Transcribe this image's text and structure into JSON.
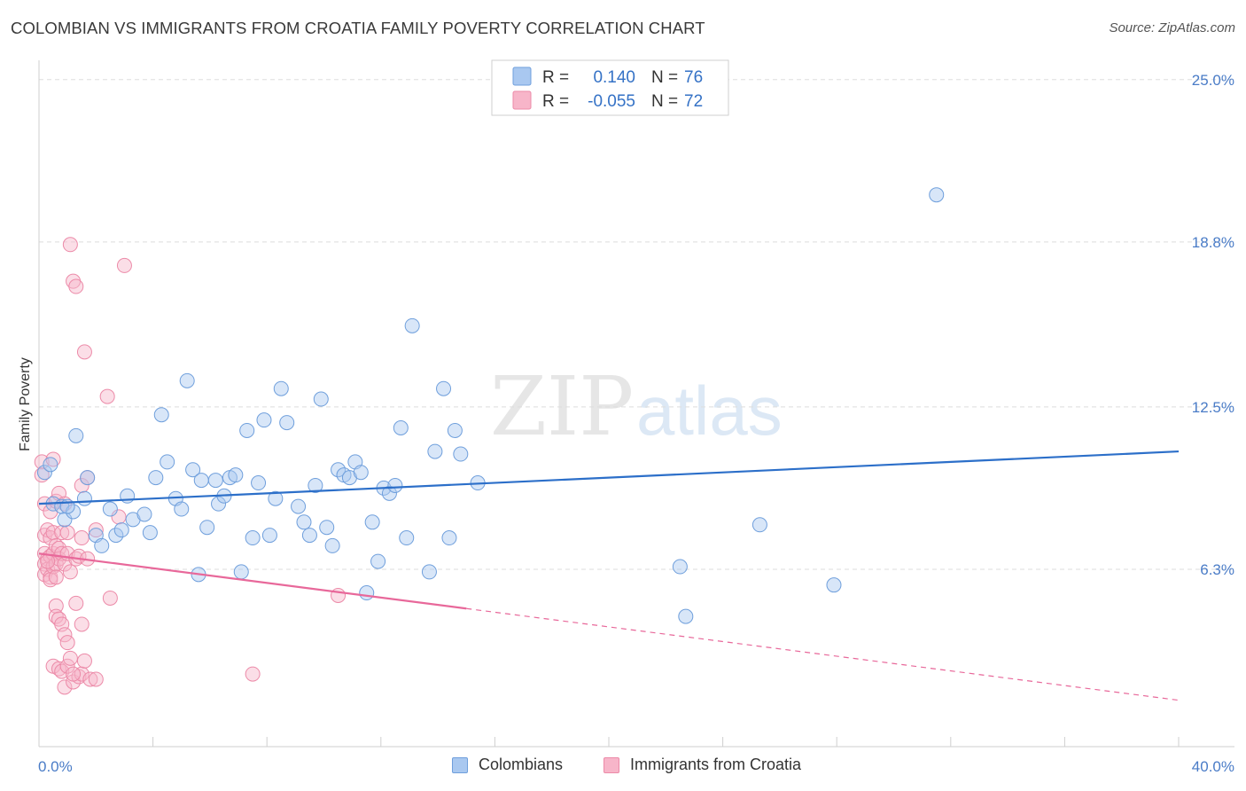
{
  "title": "COLOMBIAN VS IMMIGRANTS FROM CROATIA FAMILY POVERTY CORRELATION CHART",
  "source": "Source: ZipAtlas.com",
  "watermark": {
    "zip": "ZIP",
    "atlas": "atlas"
  },
  "colors": {
    "blue_fill": "#a9c8f0",
    "blue_stroke": "#6f9fdc",
    "blue_line": "#2c6fc9",
    "pink_fill": "#f7b5c9",
    "pink_stroke": "#ec8aa8",
    "pink_line": "#e8689a",
    "grid": "#dddddd",
    "tick_label": "#4a7cc7"
  },
  "legend": {
    "rows": [
      {
        "r_label": "R =",
        "r_value": "0.140",
        "n_label": "N =",
        "n_value": "76"
      },
      {
        "r_label": "R =",
        "r_value": "-0.055",
        "n_label": "N =",
        "n_value": "72"
      }
    ]
  },
  "bottom_legend": {
    "series1": "Colombians",
    "series2": "Immigrants from Croatia"
  },
  "chart_data": {
    "type": "scatter",
    "title": "COLOMBIAN VS IMMIGRANTS FROM CROATIA FAMILY POVERTY CORRELATION CHART",
    "xlabel": "",
    "ylabel": "Family Poverty",
    "xlim": [
      0,
      40
    ],
    "ylim": [
      0,
      25.5
    ],
    "x_tick_labels": [
      "0.0%",
      "40.0%"
    ],
    "y_ticks": [
      6.3,
      12.5,
      18.8,
      25.0
    ],
    "y_tick_labels": [
      "6.3%",
      "12.5%",
      "18.8%",
      "25.0%"
    ],
    "series": [
      {
        "name": "Colombians",
        "r": 0.14,
        "n": 76,
        "trend": {
          "x0": 0,
          "y0": 8.8,
          "x1": 40,
          "y1": 10.8,
          "dashed_from": null
        },
        "points": [
          [
            0.2,
            10.0
          ],
          [
            0.5,
            8.8
          ],
          [
            0.8,
            8.7
          ],
          [
            0.9,
            8.2
          ],
          [
            1.3,
            11.4
          ],
          [
            1.6,
            9.0
          ],
          [
            1.7,
            9.8
          ],
          [
            1.2,
            8.5
          ],
          [
            2.0,
            7.6
          ],
          [
            2.2,
            7.2
          ],
          [
            2.5,
            8.6
          ],
          [
            2.7,
            7.6
          ],
          [
            2.9,
            7.8
          ],
          [
            3.1,
            9.1
          ],
          [
            3.3,
            8.2
          ],
          [
            3.7,
            8.4
          ],
          [
            3.9,
            7.7
          ],
          [
            4.1,
            9.8
          ],
          [
            4.3,
            12.2
          ],
          [
            4.5,
            10.4
          ],
          [
            4.8,
            9.0
          ],
          [
            5.0,
            8.6
          ],
          [
            5.2,
            13.5
          ],
          [
            5.4,
            10.1
          ],
          [
            5.6,
            6.1
          ],
          [
            5.7,
            9.7
          ],
          [
            5.9,
            7.9
          ],
          [
            6.2,
            9.7
          ],
          [
            6.3,
            8.8
          ],
          [
            6.5,
            9.1
          ],
          [
            6.7,
            9.8
          ],
          [
            6.9,
            9.9
          ],
          [
            7.1,
            6.2
          ],
          [
            7.3,
            11.6
          ],
          [
            7.5,
            7.5
          ],
          [
            7.7,
            9.6
          ],
          [
            7.9,
            12.0
          ],
          [
            8.1,
            7.6
          ],
          [
            8.3,
            9.0
          ],
          [
            8.5,
            13.2
          ],
          [
            8.7,
            11.9
          ],
          [
            9.1,
            8.7
          ],
          [
            9.3,
            8.1
          ],
          [
            9.5,
            7.6
          ],
          [
            9.7,
            9.5
          ],
          [
            9.9,
            12.8
          ],
          [
            10.1,
            7.9
          ],
          [
            10.3,
            7.2
          ],
          [
            10.5,
            10.1
          ],
          [
            10.7,
            9.9
          ],
          [
            10.9,
            9.8
          ],
          [
            11.1,
            10.4
          ],
          [
            11.3,
            10.0
          ],
          [
            11.5,
            5.4
          ],
          [
            11.7,
            8.1
          ],
          [
            11.9,
            6.6
          ],
          [
            12.1,
            9.4
          ],
          [
            12.3,
            9.2
          ],
          [
            12.5,
            9.5
          ],
          [
            12.7,
            11.7
          ],
          [
            12.9,
            7.5
          ],
          [
            13.1,
            15.6
          ],
          [
            13.7,
            6.2
          ],
          [
            13.9,
            10.8
          ],
          [
            14.2,
            13.2
          ],
          [
            14.4,
            7.5
          ],
          [
            14.6,
            11.6
          ],
          [
            14.8,
            10.7
          ],
          [
            15.4,
            9.6
          ],
          [
            22.5,
            6.4
          ],
          [
            22.7,
            4.5
          ],
          [
            25.3,
            8.0
          ],
          [
            27.9,
            5.7
          ],
          [
            31.5,
            20.6
          ],
          [
            0.4,
            10.3
          ],
          [
            1.0,
            8.7
          ]
        ]
      },
      {
        "name": "Immigrants from Croatia",
        "r": -0.055,
        "n": 72,
        "trend": {
          "x0": 0,
          "y0": 6.9,
          "x1": 40,
          "y1": 1.3,
          "dashed_from": 15.0
        },
        "points": [
          [
            0.1,
            10.4
          ],
          [
            0.1,
            9.9
          ],
          [
            0.2,
            8.8
          ],
          [
            0.2,
            7.6
          ],
          [
            0.2,
            6.9
          ],
          [
            0.2,
            6.5
          ],
          [
            0.2,
            6.1
          ],
          [
            0.3,
            7.8
          ],
          [
            0.3,
            6.7
          ],
          [
            0.3,
            6.3
          ],
          [
            0.4,
            8.5
          ],
          [
            0.4,
            7.5
          ],
          [
            0.4,
            6.8
          ],
          [
            0.4,
            6.0
          ],
          [
            0.4,
            5.9
          ],
          [
            0.5,
            10.5
          ],
          [
            0.5,
            7.7
          ],
          [
            0.5,
            6.9
          ],
          [
            0.5,
            6.4
          ],
          [
            0.5,
            2.6
          ],
          [
            0.6,
            8.9
          ],
          [
            0.6,
            7.2
          ],
          [
            0.6,
            6.5
          ],
          [
            0.6,
            4.9
          ],
          [
            0.6,
            4.5
          ],
          [
            0.7,
            9.2
          ],
          [
            0.7,
            7.1
          ],
          [
            0.7,
            6.7
          ],
          [
            0.7,
            4.4
          ],
          [
            0.7,
            2.5
          ],
          [
            0.8,
            7.7
          ],
          [
            0.8,
            6.9
          ],
          [
            0.8,
            4.2
          ],
          [
            0.8,
            2.4
          ],
          [
            0.9,
            8.8
          ],
          [
            0.9,
            6.5
          ],
          [
            0.9,
            3.8
          ],
          [
            0.9,
            1.8
          ],
          [
            1.0,
            7.7
          ],
          [
            1.0,
            6.9
          ],
          [
            1.0,
            3.5
          ],
          [
            1.0,
            2.6
          ],
          [
            1.1,
            18.7
          ],
          [
            1.1,
            2.9
          ],
          [
            1.2,
            17.3
          ],
          [
            1.2,
            2.0
          ],
          [
            1.3,
            17.1
          ],
          [
            1.3,
            6.7
          ],
          [
            1.3,
            5.0
          ],
          [
            1.4,
            6.8
          ],
          [
            1.4,
            2.2
          ],
          [
            1.5,
            9.5
          ],
          [
            1.5,
            7.5
          ],
          [
            1.5,
            4.2
          ],
          [
            1.5,
            2.3
          ],
          [
            1.6,
            14.6
          ],
          [
            1.6,
            2.8
          ],
          [
            1.7,
            9.8
          ],
          [
            1.7,
            6.7
          ],
          [
            1.8,
            2.1
          ],
          [
            2.0,
            7.8
          ],
          [
            2.0,
            2.1
          ],
          [
            2.4,
            12.9
          ],
          [
            2.5,
            5.2
          ],
          [
            2.8,
            8.3
          ],
          [
            3.0,
            17.9
          ],
          [
            0.3,
            6.6
          ],
          [
            0.6,
            6.0
          ],
          [
            1.1,
            6.2
          ],
          [
            1.2,
            2.3
          ],
          [
            7.5,
            2.3
          ],
          [
            10.5,
            5.3
          ]
        ]
      }
    ]
  }
}
